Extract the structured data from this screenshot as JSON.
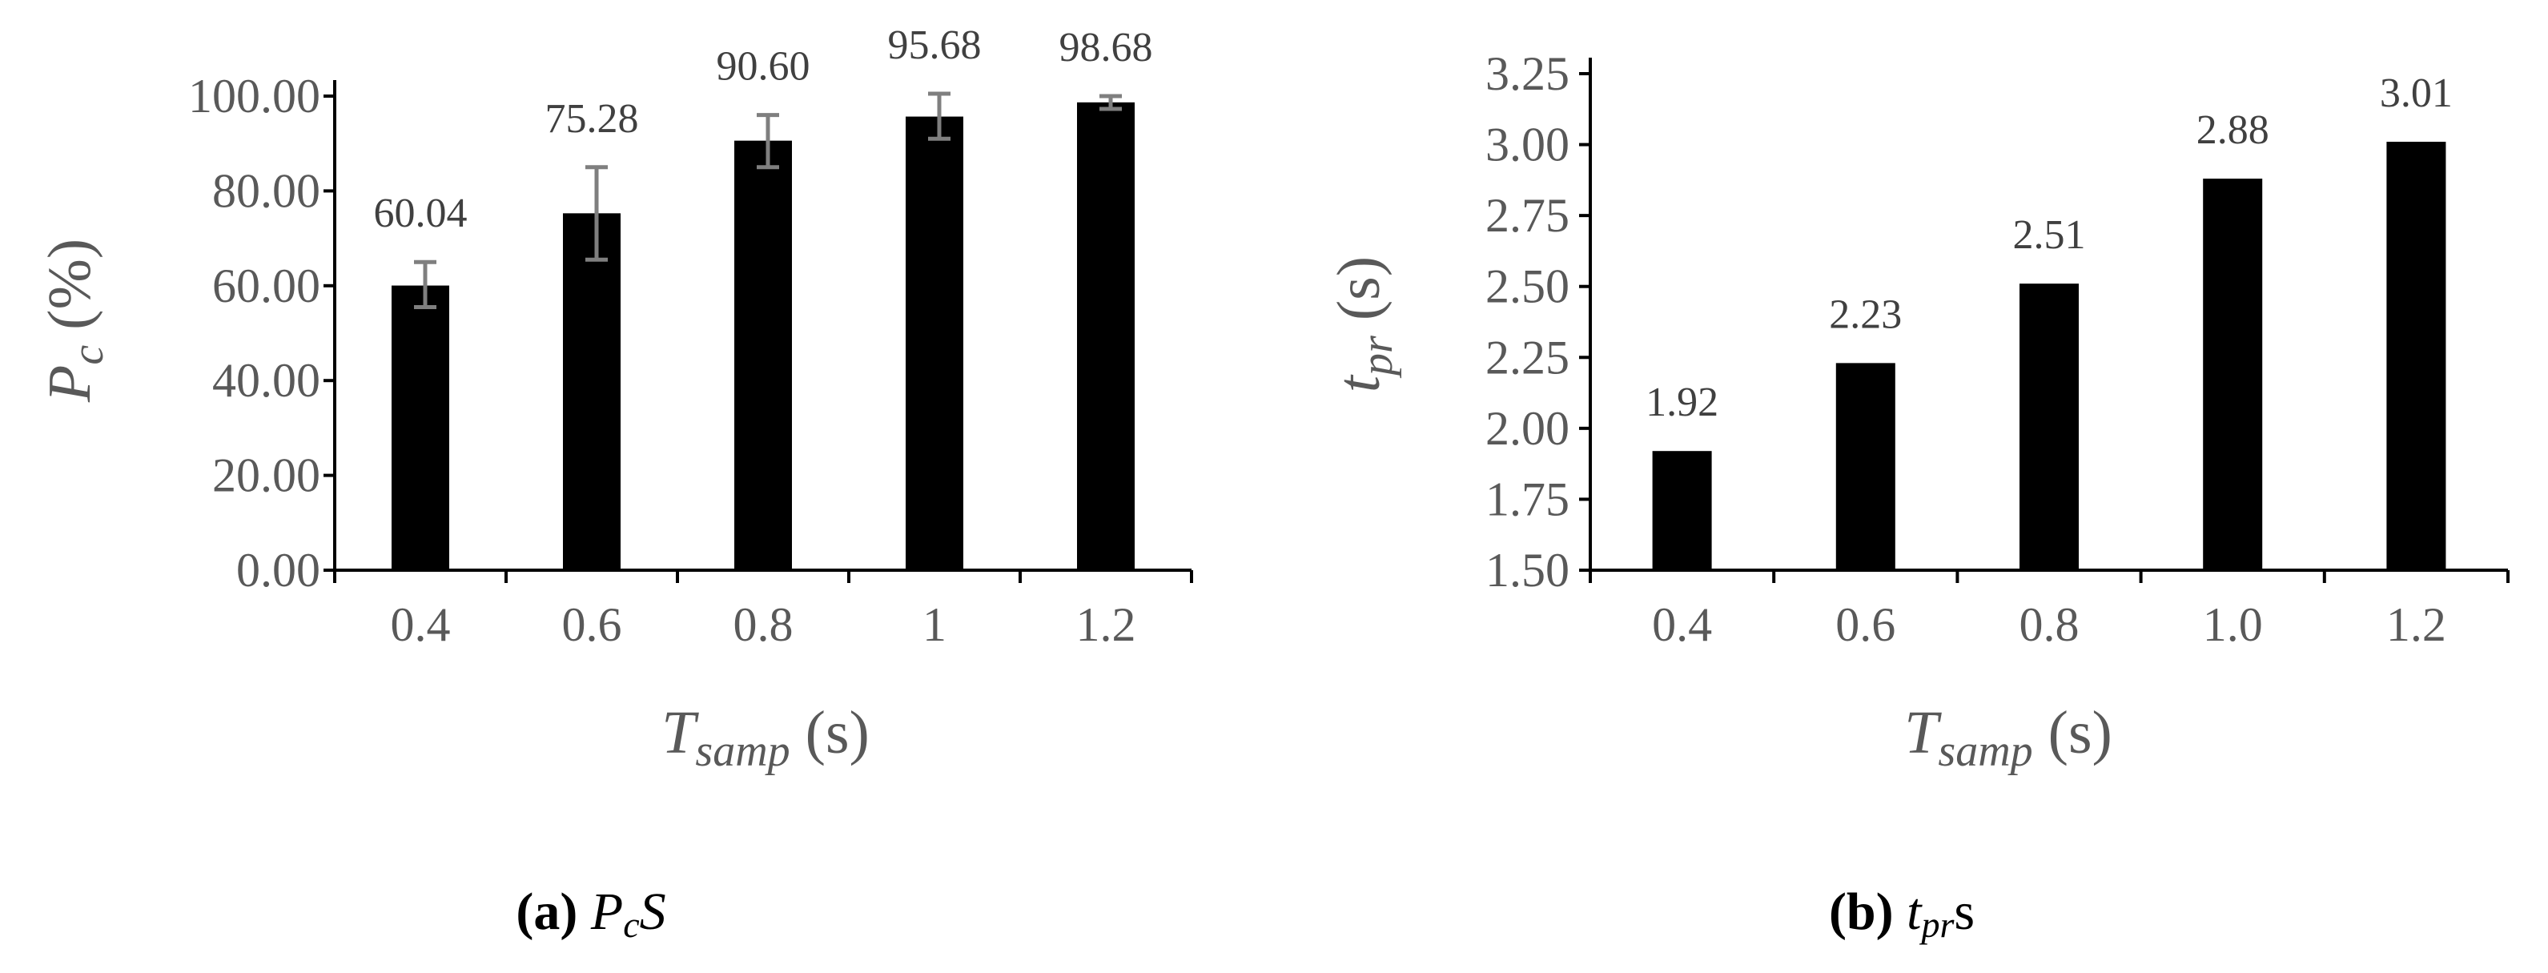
{
  "chart_data": [
    {
      "type": "bar",
      "categories": [
        "0.4",
        "0.6",
        "0.8",
        "1",
        "1.2"
      ],
      "values": [
        60.04,
        75.28,
        90.6,
        95.68,
        98.68
      ],
      "data_labels": [
        "60.04",
        "75.28",
        "90.60",
        "95.68",
        "98.68"
      ],
      "error_bars": [
        {
          "low": 55.5,
          "high": 65.0
        },
        {
          "low": 65.5,
          "high": 85.0
        },
        {
          "low": 85.0,
          "high": 96.0
        },
        {
          "low": 91.0,
          "high": 100.5
        },
        {
          "low": 97.3,
          "high": 100.0
        }
      ],
      "ylim": [
        0,
        100
      ],
      "yticks": [
        0,
        20,
        40,
        60,
        80,
        100
      ],
      "ytick_labels": [
        "0.00",
        "20.00",
        "40.00",
        "60.00",
        "80.00",
        "100.00"
      ],
      "ylabel": {
        "main": "P",
        "sub": "c",
        "rest": " (%)"
      },
      "xlabel": {
        "main": "T",
        "sub": "samp",
        "rest": " (s)"
      },
      "caption": {
        "letter": "(a)",
        "main": "P",
        "sub": "c",
        "rest": "S"
      },
      "grid": false,
      "colors": {
        "bar": "#000000",
        "error": "#7f7f7f",
        "axis": "#000000",
        "text": "#595959"
      }
    },
    {
      "type": "bar",
      "categories": [
        "0.4",
        "0.6",
        "0.8",
        "1.0",
        "1.2"
      ],
      "values": [
        1.92,
        2.23,
        2.51,
        2.88,
        3.01
      ],
      "data_labels": [
        "1.92",
        "2.23",
        "2.51",
        "2.88",
        "3.01"
      ],
      "ylim": [
        1.5,
        3.25
      ],
      "yticks": [
        1.5,
        1.75,
        2.0,
        2.25,
        2.5,
        2.75,
        3.0,
        3.25
      ],
      "ytick_labels": [
        "1.50",
        "1.75",
        "2.00",
        "2.25",
        "2.50",
        "2.75",
        "3.00",
        "3.25"
      ],
      "ylabel": {
        "main": "t",
        "sub": "pr",
        "rest": " (s)"
      },
      "xlabel": {
        "main": "T",
        "sub": "samp",
        "rest": " (s)"
      },
      "caption": {
        "letter": "(b)",
        "main": "t",
        "sub": "pr",
        "rest": "s"
      },
      "grid": false,
      "colors": {
        "bar": "#000000",
        "axis": "#000000",
        "text": "#595959"
      }
    }
  ]
}
